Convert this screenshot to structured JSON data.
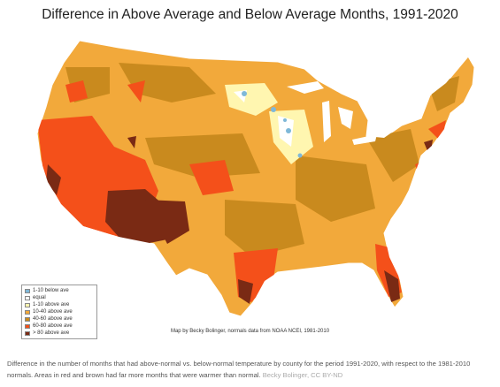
{
  "title": "Difference in Above Average and Below Average Months, 1991-2020",
  "legend": [
    {
      "label": "1-10 below ave",
      "color": "#7fb8d8"
    },
    {
      "label": "equal",
      "color": "#ffffff"
    },
    {
      "label": "1-10 above ave",
      "color": "#fff6b0"
    },
    {
      "label": "10-40 above ave",
      "color": "#f2a93b"
    },
    {
      "label": "40-60 above ave",
      "color": "#c98a1e"
    },
    {
      "label": "60-80 above ave",
      "color": "#f4501a"
    },
    {
      "label": "> 80 above ave",
      "color": "#7a2a14"
    }
  ],
  "map_credit": "Map by Becky Bolinger, normals data from NOAA NCEI, 1981-2010",
  "caption": "Difference in the number of months that had above-normal vs. below-normal temperature by county for the period 1991-2020, with respect to the 1981-2010 normals. Areas in red and brown had far more months that were warmer than normal.",
  "caption_source": "Becky Bolinger, CC BY-ND"
}
